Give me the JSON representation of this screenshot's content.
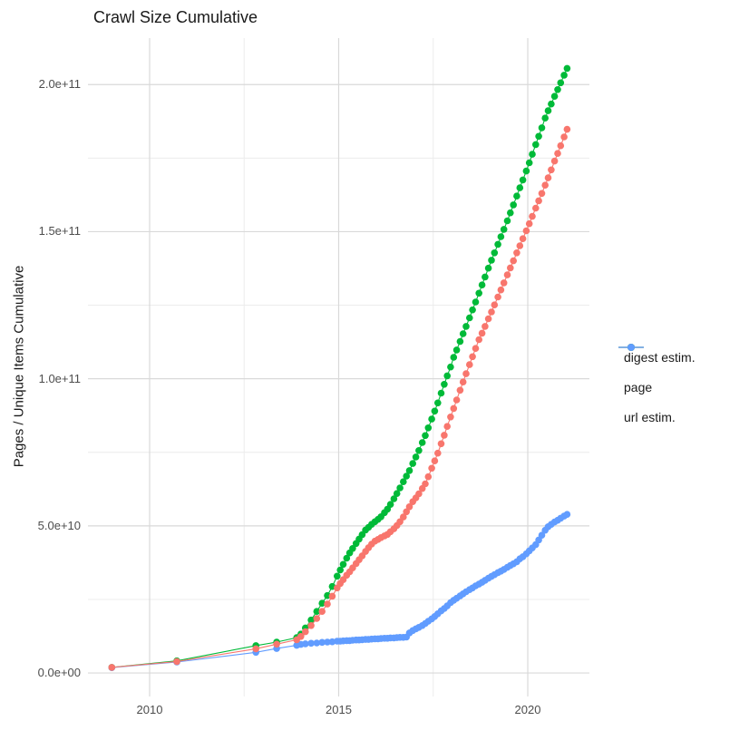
{
  "title": "Crawl Size Cumulative",
  "axes": {
    "y_label": "Pages / Unique Items Cumulative",
    "y_tick_labels": [
      "0.0e+00",
      "5.0e+10",
      "1.0e+11",
      "1.5e+11",
      "2.0e+11"
    ],
    "x_tick_labels": [
      "2010",
      "2015",
      "2020"
    ]
  },
  "legend": {
    "items": [
      {
        "label": "digest estim.",
        "color": "#F8766D"
      },
      {
        "label": "page",
        "color": "#00BA38"
      },
      {
        "label": "url estim.",
        "color": "#619CFF"
      }
    ]
  },
  "colors": {
    "grid_major": "#d9d9d9",
    "grid_minor": "#ececec",
    "text_dark": "#1a1a1a",
    "text_tick": "#4d4d4d",
    "background": "#ffffff"
  },
  "chart_data": {
    "type": "scatter",
    "title": "Crawl Size Cumulative",
    "xlabel": "",
    "ylabel": "Pages / Unique Items Cumulative",
    "y_unit_multiplier": 1000000000.0,
    "xlim": [
      2008.37,
      2021.63
    ],
    "ylim_e9": [
      -8,
      215.8
    ],
    "x_ticks_major": [
      2010,
      2015,
      2020
    ],
    "x_ticks_minor": [
      2012.5,
      2017.5
    ],
    "y_ticks_major_e9": [
      0,
      50,
      100,
      150,
      200
    ],
    "y_ticks_minor_e9": [
      25,
      75,
      125,
      175
    ],
    "grid": true,
    "legend_position": "right",
    "series": [
      {
        "name": "digest estim.",
        "color": "#F8766D",
        "points_year_value_e9": [
          [
            2009.0,
            1.9
          ],
          [
            2010.72,
            3.9
          ],
          [
            2012.81,
            8.2
          ],
          [
            2013.36,
            9.8
          ],
          [
            2013.89,
            11.3
          ],
          [
            2014.0,
            12.4
          ],
          [
            2014.12,
            14.0
          ],
          [
            2014.27,
            16.1
          ],
          [
            2014.42,
            18.5
          ],
          [
            2014.56,
            20.9
          ],
          [
            2014.7,
            23.4
          ],
          [
            2014.83,
            26.1
          ],
          [
            2014.96,
            28.9
          ],
          [
            2015.04,
            30.4
          ],
          [
            2015.12,
            31.7
          ],
          [
            2015.21,
            33.2
          ],
          [
            2015.29,
            34.4
          ],
          [
            2015.37,
            35.7
          ],
          [
            2015.46,
            37.2
          ],
          [
            2015.54,
            38.5
          ],
          [
            2015.62,
            39.8
          ],
          [
            2015.71,
            41.3
          ],
          [
            2015.79,
            42.6
          ],
          [
            2015.87,
            43.8
          ],
          [
            2015.96,
            44.8
          ],
          [
            2016.04,
            45.4
          ],
          [
            2016.12,
            46.0
          ],
          [
            2016.21,
            46.6
          ],
          [
            2016.29,
            47.1
          ],
          [
            2016.37,
            48.0
          ],
          [
            2016.46,
            49.0
          ],
          [
            2016.54,
            50.1
          ],
          [
            2016.62,
            51.4
          ],
          [
            2016.71,
            53.0
          ],
          [
            2016.79,
            54.8
          ],
          [
            2016.87,
            56.5
          ],
          [
            2016.96,
            58.2
          ],
          [
            2017.04,
            59.5
          ],
          [
            2017.12,
            60.9
          ],
          [
            2017.21,
            62.7
          ],
          [
            2017.29,
            64.3
          ],
          [
            2017.37,
            66.7
          ],
          [
            2017.46,
            69.6
          ],
          [
            2017.54,
            72.1
          ],
          [
            2017.62,
            74.7
          ],
          [
            2017.71,
            77.9
          ],
          [
            2017.79,
            80.8
          ],
          [
            2017.87,
            83.8
          ],
          [
            2017.96,
            87.0
          ],
          [
            2018.04,
            89.9
          ],
          [
            2018.12,
            92.8
          ],
          [
            2018.21,
            96.1
          ],
          [
            2018.29,
            98.9
          ],
          [
            2018.37,
            101.7
          ],
          [
            2018.46,
            104.8
          ],
          [
            2018.54,
            107.5
          ],
          [
            2018.62,
            110.3
          ],
          [
            2018.71,
            113.3
          ],
          [
            2018.79,
            115.5
          ],
          [
            2018.87,
            117.8
          ],
          [
            2018.96,
            120.4
          ],
          [
            2019.04,
            122.7
          ],
          [
            2019.12,
            125.1
          ],
          [
            2019.21,
            127.8
          ],
          [
            2019.29,
            130.2
          ],
          [
            2019.37,
            132.6
          ],
          [
            2019.46,
            135.3
          ],
          [
            2019.54,
            137.7
          ],
          [
            2019.62,
            140.1
          ],
          [
            2019.71,
            142.8
          ],
          [
            2019.79,
            145.2
          ],
          [
            2019.87,
            147.6
          ],
          [
            2019.96,
            150.3
          ],
          [
            2020.04,
            152.7
          ],
          [
            2020.12,
            155.2
          ],
          [
            2020.21,
            158.0
          ],
          [
            2020.29,
            160.5
          ],
          [
            2020.37,
            163.0
          ],
          [
            2020.46,
            165.8
          ],
          [
            2020.54,
            168.3
          ],
          [
            2020.62,
            171.0
          ],
          [
            2020.71,
            174.0
          ],
          [
            2020.79,
            176.6
          ],
          [
            2020.87,
            179.2
          ],
          [
            2020.96,
            182.2
          ],
          [
            2021.04,
            184.8
          ]
        ]
      },
      {
        "name": "page",
        "color": "#00BA38",
        "points_year_value_e9": [
          [
            2009.0,
            1.9
          ],
          [
            2010.72,
            4.1
          ],
          [
            2012.81,
            9.3
          ],
          [
            2013.36,
            10.5
          ],
          [
            2013.89,
            12.0
          ],
          [
            2014.0,
            13.2
          ],
          [
            2014.12,
            15.3
          ],
          [
            2014.27,
            18.0
          ],
          [
            2014.42,
            20.9
          ],
          [
            2014.56,
            23.7
          ],
          [
            2014.7,
            26.3
          ],
          [
            2014.83,
            29.4
          ],
          [
            2014.96,
            32.9
          ],
          [
            2015.04,
            35.0
          ],
          [
            2015.12,
            36.9
          ],
          [
            2015.21,
            39.0
          ],
          [
            2015.29,
            40.8
          ],
          [
            2015.37,
            42.3
          ],
          [
            2015.46,
            44.0
          ],
          [
            2015.54,
            45.5
          ],
          [
            2015.62,
            47.0
          ],
          [
            2015.71,
            48.6
          ],
          [
            2015.79,
            49.5
          ],
          [
            2015.87,
            50.5
          ],
          [
            2015.96,
            51.4
          ],
          [
            2016.04,
            52.2
          ],
          [
            2016.12,
            53.1
          ],
          [
            2016.21,
            54.5
          ],
          [
            2016.29,
            55.7
          ],
          [
            2016.37,
            57.3
          ],
          [
            2016.46,
            59.2
          ],
          [
            2016.54,
            61.0
          ],
          [
            2016.62,
            62.9
          ],
          [
            2016.71,
            65.0
          ],
          [
            2016.79,
            66.9
          ],
          [
            2016.87,
            68.8
          ],
          [
            2016.96,
            71.2
          ],
          [
            2017.04,
            73.4
          ],
          [
            2017.12,
            75.6
          ],
          [
            2017.21,
            78.3
          ],
          [
            2017.29,
            80.7
          ],
          [
            2017.37,
            83.3
          ],
          [
            2017.46,
            86.3
          ],
          [
            2017.54,
            89.0
          ],
          [
            2017.62,
            91.8
          ],
          [
            2017.71,
            95.1
          ],
          [
            2017.79,
            98.1
          ],
          [
            2017.87,
            101.0
          ],
          [
            2017.96,
            104.0
          ],
          [
            2018.04,
            107.3
          ],
          [
            2018.12,
            109.8
          ],
          [
            2018.21,
            112.7
          ],
          [
            2018.29,
            115.3
          ],
          [
            2018.37,
            117.8
          ],
          [
            2018.46,
            120.7
          ],
          [
            2018.54,
            123.4
          ],
          [
            2018.62,
            126.1
          ],
          [
            2018.71,
            129.1
          ],
          [
            2018.79,
            131.9
          ],
          [
            2018.87,
            134.6
          ],
          [
            2018.96,
            137.6
          ],
          [
            2019.04,
            140.3
          ],
          [
            2019.12,
            142.8
          ],
          [
            2019.21,
            145.7
          ],
          [
            2019.29,
            148.3
          ],
          [
            2019.37,
            150.8
          ],
          [
            2019.46,
            153.7
          ],
          [
            2019.54,
            156.4
          ],
          [
            2019.62,
            159.1
          ],
          [
            2019.71,
            162.1
          ],
          [
            2019.79,
            164.9
          ],
          [
            2019.87,
            167.6
          ],
          [
            2019.96,
            170.6
          ],
          [
            2020.04,
            173.4
          ],
          [
            2020.12,
            176.3
          ],
          [
            2020.21,
            179.6
          ],
          [
            2020.29,
            182.4
          ],
          [
            2020.37,
            185.3
          ],
          [
            2020.46,
            188.6
          ],
          [
            2020.54,
            191.1
          ],
          [
            2020.62,
            193.4
          ],
          [
            2020.71,
            196.0
          ],
          [
            2020.79,
            198.3
          ],
          [
            2020.87,
            200.6
          ],
          [
            2020.96,
            203.2
          ],
          [
            2021.04,
            205.5
          ]
        ]
      },
      {
        "name": "url estim.",
        "color": "#619CFF",
        "points_year_value_e9": [
          [
            2009.0,
            1.8
          ],
          [
            2010.72,
            3.7
          ],
          [
            2012.81,
            7.0
          ],
          [
            2013.36,
            8.3
          ],
          [
            2013.89,
            9.4
          ],
          [
            2014.0,
            9.7
          ],
          [
            2014.12,
            9.9
          ],
          [
            2014.27,
            10.1
          ],
          [
            2014.42,
            10.2
          ],
          [
            2014.56,
            10.4
          ],
          [
            2014.7,
            10.5
          ],
          [
            2014.83,
            10.6
          ],
          [
            2014.96,
            10.8
          ],
          [
            2015.04,
            10.8
          ],
          [
            2015.12,
            10.9
          ],
          [
            2015.21,
            11.0
          ],
          [
            2015.29,
            11.0
          ],
          [
            2015.37,
            11.1
          ],
          [
            2015.46,
            11.2
          ],
          [
            2015.54,
            11.2
          ],
          [
            2015.62,
            11.3
          ],
          [
            2015.71,
            11.4
          ],
          [
            2015.79,
            11.4
          ],
          [
            2015.87,
            11.5
          ],
          [
            2015.96,
            11.6
          ],
          [
            2016.04,
            11.6
          ],
          [
            2016.12,
            11.7
          ],
          [
            2016.21,
            11.8
          ],
          [
            2016.29,
            11.8
          ],
          [
            2016.37,
            11.9
          ],
          [
            2016.46,
            11.9
          ],
          [
            2016.54,
            12.0
          ],
          [
            2016.62,
            12.1
          ],
          [
            2016.71,
            12.1
          ],
          [
            2016.79,
            12.2
          ],
          [
            2016.87,
            13.6
          ],
          [
            2016.96,
            14.4
          ],
          [
            2017.04,
            15.0
          ],
          [
            2017.12,
            15.5
          ],
          [
            2017.21,
            16.1
          ],
          [
            2017.29,
            16.8
          ],
          [
            2017.37,
            17.6
          ],
          [
            2017.46,
            18.4
          ],
          [
            2017.54,
            19.2
          ],
          [
            2017.62,
            20.1
          ],
          [
            2017.71,
            21.1
          ],
          [
            2017.79,
            21.9
          ],
          [
            2017.87,
            22.8
          ],
          [
            2017.96,
            23.9
          ],
          [
            2018.04,
            24.7
          ],
          [
            2018.12,
            25.4
          ],
          [
            2018.21,
            26.2
          ],
          [
            2018.29,
            26.9
          ],
          [
            2018.37,
            27.6
          ],
          [
            2018.46,
            28.3
          ],
          [
            2018.54,
            28.9
          ],
          [
            2018.62,
            29.6
          ],
          [
            2018.71,
            30.2
          ],
          [
            2018.79,
            30.8
          ],
          [
            2018.87,
            31.5
          ],
          [
            2018.96,
            32.2
          ],
          [
            2019.04,
            32.8
          ],
          [
            2019.12,
            33.4
          ],
          [
            2019.21,
            34.1
          ],
          [
            2019.29,
            34.6
          ],
          [
            2019.37,
            35.2
          ],
          [
            2019.46,
            35.9
          ],
          [
            2019.54,
            36.5
          ],
          [
            2019.62,
            37.1
          ],
          [
            2019.71,
            37.8
          ],
          [
            2019.79,
            38.8
          ],
          [
            2019.87,
            39.5
          ],
          [
            2019.96,
            40.5
          ],
          [
            2020.04,
            41.5
          ],
          [
            2020.12,
            42.5
          ],
          [
            2020.21,
            43.6
          ],
          [
            2020.29,
            45.2
          ],
          [
            2020.37,
            46.8
          ],
          [
            2020.46,
            48.5
          ],
          [
            2020.54,
            49.7
          ],
          [
            2020.62,
            50.5
          ],
          [
            2020.71,
            51.3
          ],
          [
            2020.79,
            51.9
          ],
          [
            2020.87,
            52.6
          ],
          [
            2020.96,
            53.3
          ],
          [
            2021.04,
            53.9
          ]
        ]
      }
    ]
  }
}
